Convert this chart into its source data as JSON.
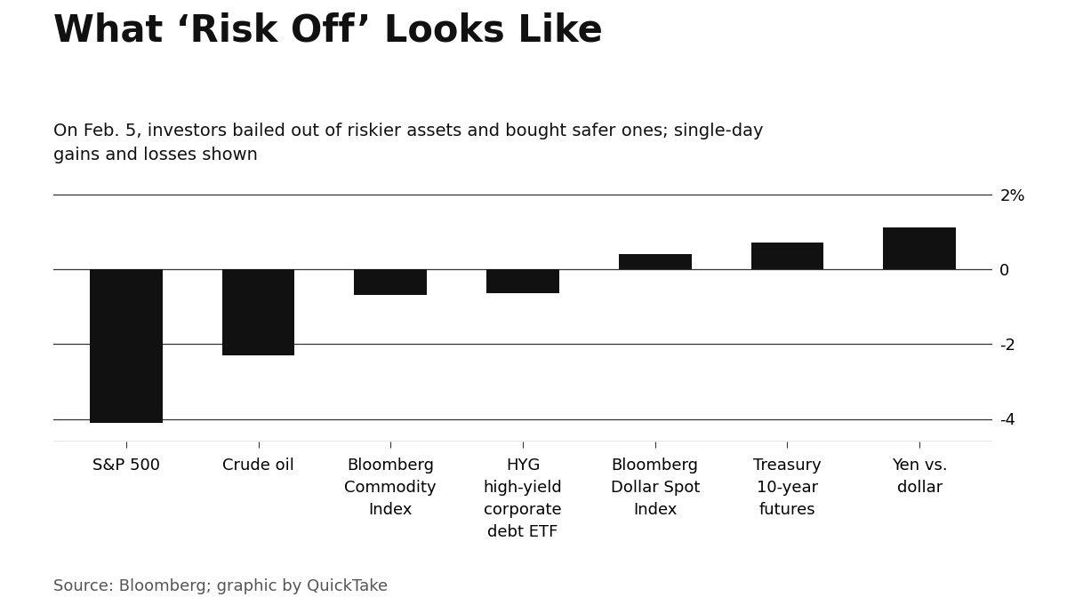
{
  "title": "What ‘Risk Off’ Looks Like",
  "subtitle": "On Feb. 5, investors bailed out of riskier assets and bought safer ones; single-day\ngains and losses shown",
  "source": "Source: Bloomberg; graphic by QuickTake",
  "categories": [
    "S&P 500",
    "Crude oil",
    "Bloomberg\nCommodity\nIndex",
    "HYG\nhigh-yield\ncorporate\ndebt ETF",
    "Bloomberg\nDollar Spot\nIndex",
    "Treasury\n10-year\nfutures",
    "Yen vs.\ndollar"
  ],
  "values": [
    -4.1,
    -2.3,
    -0.7,
    -0.65,
    0.4,
    0.7,
    1.1
  ],
  "bar_color": "#111111",
  "background_color": "#ffffff",
  "ylim": [
    -4.6,
    2.6
  ],
  "yticks": [
    -4,
    -2,
    0,
    2
  ],
  "ytick_labels": [
    "-4",
    "-2",
    "0",
    "2%"
  ],
  "title_fontsize": 30,
  "subtitle_fontsize": 14,
  "source_fontsize": 13,
  "tick_label_fontsize": 13,
  "bar_width": 0.55
}
